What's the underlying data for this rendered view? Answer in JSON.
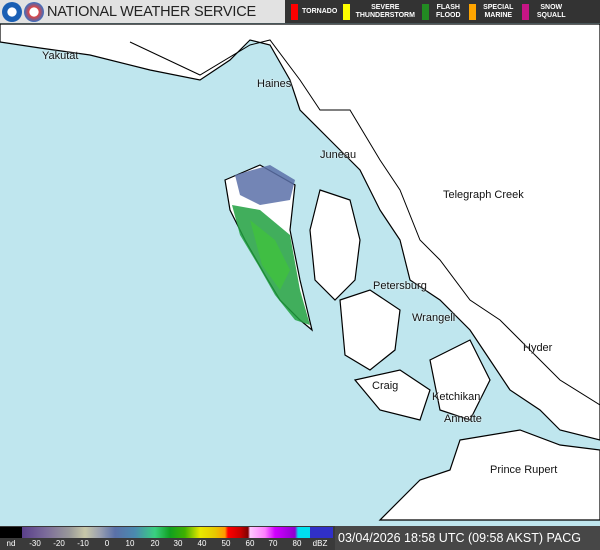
{
  "header": {
    "title": "NATIONAL WEATHER SERVICE",
    "logos": [
      "noaa-logo",
      "nws-logo"
    ]
  },
  "warnings": [
    {
      "label": "TORNADO",
      "color": "#ff0000"
    },
    {
      "label": "SEVERE THUNDERSTORM",
      "color": "#ffff00"
    },
    {
      "label": "FLASH FLOOD",
      "color": "#228b22"
    },
    {
      "label": "SPECIAL MARINE",
      "color": "#ffa500"
    },
    {
      "label": "SNOW SQUALL",
      "color": "#c71585"
    }
  ],
  "cities": [
    "Yakutat",
    "Haines",
    "Juneau",
    "Telegraph Creek",
    "Petersburg",
    "Wrangell",
    "Hyder",
    "Craig",
    "Ketchikan",
    "Annette",
    "Prince Rupert"
  ],
  "colorbar": {
    "labels": [
      "nd",
      "-30",
      "-20",
      "-10",
      "0",
      "10",
      "20",
      "30",
      "40",
      "50",
      "60",
      "70",
      "80",
      "dBZ"
    ]
  },
  "timestamp": "03/04/2026 18:58 UTC (09:58 AKST) PACG",
  "colors": {
    "water": "#bfe6ee",
    "land": "#ffffff"
  }
}
